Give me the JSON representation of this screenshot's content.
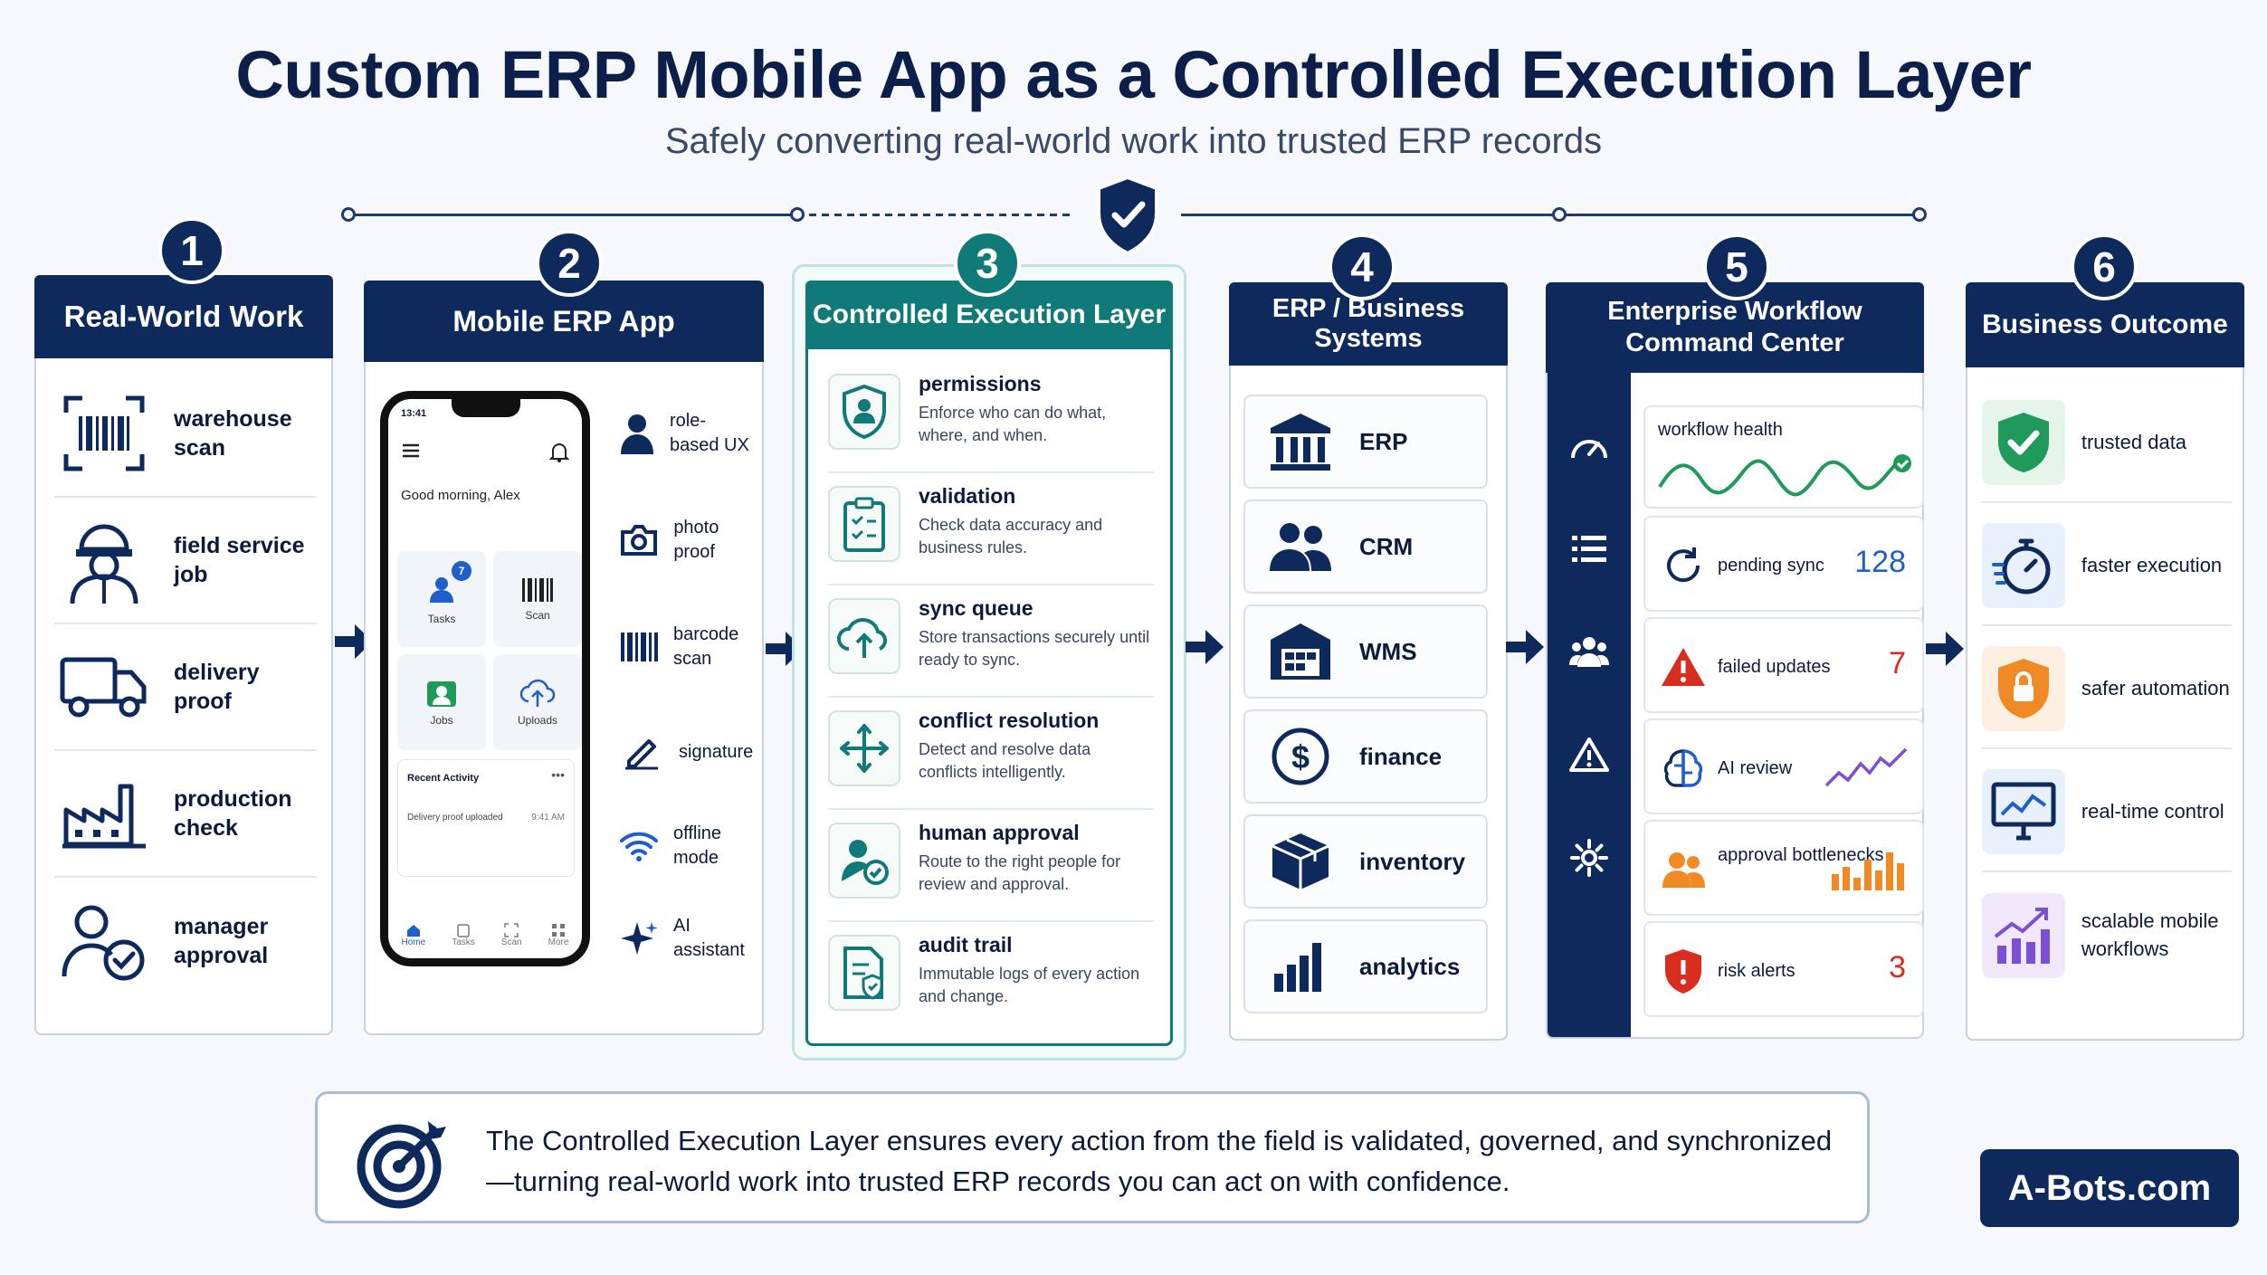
{
  "title": "Custom ERP Mobile App as a Controlled Execution Layer",
  "subtitle": "Safely converting real-world work into trusted ERP records",
  "columns": {
    "c1": {
      "number": "1",
      "header": "Real-World Work",
      "items": [
        "warehouse scan",
        "field service job",
        "delivery proof",
        "production check",
        "manager approval"
      ]
    },
    "c2": {
      "number": "2",
      "header": "Mobile ERP App",
      "phone": {
        "time": "13:41",
        "greeting": "Good morning, Alex",
        "tiles": [
          {
            "label": "Tasks",
            "badge": "7"
          },
          {
            "label": "Scan"
          },
          {
            "label": "Jobs"
          },
          {
            "label": "Uploads"
          }
        ],
        "activity_title": "Recent Activity",
        "activity_row": "Delivery proof uploaded",
        "activity_time": "9:41 AM",
        "nav": [
          "Home",
          "Tasks",
          "Scan",
          "More"
        ]
      },
      "features": [
        "role-based UX",
        "photo proof",
        "barcode scan",
        "signature",
        "offline mode",
        "AI assistant"
      ]
    },
    "c3": {
      "number": "3",
      "header": "Controlled Execution Layer",
      "items": [
        {
          "title": "permissions",
          "desc": "Enforce who can do what, where, and when."
        },
        {
          "title": "validation",
          "desc": "Check data accuracy and business rules."
        },
        {
          "title": "sync queue",
          "desc": "Store transactions securely until ready to sync."
        },
        {
          "title": "conflict resolution",
          "desc": "Detect and resolve data conflicts intelligently."
        },
        {
          "title": "human approval",
          "desc": "Route to the right people for review and approval."
        },
        {
          "title": "audit trail",
          "desc": "Immutable logs of every action and change."
        }
      ]
    },
    "c4": {
      "number": "4",
      "header": "ERP / Business Systems",
      "items": [
        "ERP",
        "CRM",
        "WMS",
        "finance",
        "inventory",
        "analytics"
      ]
    },
    "c5": {
      "number": "5",
      "header": "Enterprise Workflow Command Center",
      "health_label": "workflow health",
      "cards": [
        {
          "label": "pending sync",
          "value": "128"
        },
        {
          "label": "failed updates",
          "value": "7"
        },
        {
          "label": "AI review",
          "value": ""
        },
        {
          "label": "approval bottlenecks",
          "value": ""
        },
        {
          "label": "risk alerts",
          "value": "3"
        }
      ]
    },
    "c6": {
      "number": "6",
      "header": "Business Outcome",
      "items": [
        "trusted data",
        "faster execution",
        "safer automation",
        "real-time control",
        "scalable mobile workflows"
      ]
    }
  },
  "footer": "The Controlled Execution Layer ensures every action from the field is validated, governed, and synchronized—turning real-world work into trusted ERP records you can act on with confidence.",
  "brand": "A-Bots.com",
  "colors": {
    "navy": "#0e2a5c",
    "teal": "#0f7a78",
    "red": "#d92d20",
    "blue": "#1f5fcc",
    "orange": "#f08a24",
    "purple": "#7b4fd6",
    "green": "#1f9a5a"
  }
}
